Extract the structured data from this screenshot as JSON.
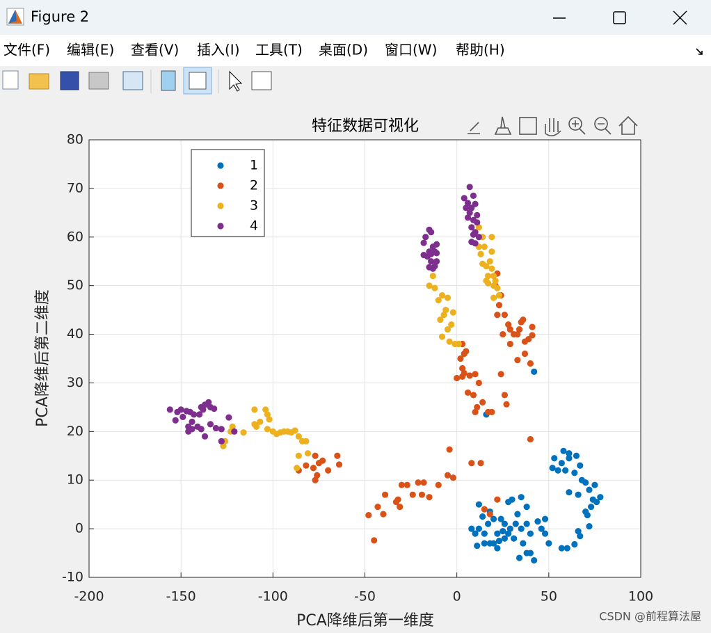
{
  "window": {
    "title": "Figure 2",
    "menu": [
      "文件(F)",
      "编辑(E)",
      "查看(V)",
      "插入(I)",
      "工具(T)",
      "桌面(D)",
      "窗口(W)",
      "帮助(H)"
    ]
  },
  "watermark": "CSDN @前程算法屋",
  "chart_data": {
    "type": "scatter",
    "title": "特征数据可视化",
    "xlabel": "PCA降维后第一维度",
    "ylabel": "PCA降维后第二维度",
    "xlim": [
      -200,
      100
    ],
    "ylim": [
      -10,
      80
    ],
    "xticks": [
      -200,
      -150,
      -100,
      -50,
      0,
      50,
      100
    ],
    "yticks": [
      -10,
      0,
      10,
      20,
      30,
      40,
      50,
      60,
      70,
      80
    ],
    "grid": true,
    "legend": "upper left",
    "series": [
      {
        "name": "1",
        "color": "#0072BD",
        "x": [
          42,
          16,
          52,
          53,
          57,
          58,
          61,
          61,
          65,
          67,
          64,
          59,
          55,
          68,
          70,
          72,
          75,
          78,
          76,
          74,
          73,
          70,
          71,
          72,
          61,
          66,
          66,
          67,
          64,
          60,
          57,
          50,
          48,
          42,
          40,
          34,
          38,
          36,
          31,
          28,
          25,
          22,
          18,
          15,
          12,
          10,
          8,
          11,
          15,
          20,
          22,
          12,
          18,
          20,
          24,
          26,
          29,
          32,
          35,
          38,
          40,
          44,
          46,
          48,
          28,
          30,
          35,
          38,
          33,
          26,
          17,
          14,
          23
        ],
        "values": [
          32.3,
          23.5,
          12.5,
          14.5,
          13.5,
          16,
          15.5,
          14.5,
          15,
          13,
          11.5,
          12,
          12,
          10,
          9.5,
          8,
          9,
          6.5,
          5.5,
          6,
          4.5,
          3.5,
          2.8,
          0.5,
          7.5,
          7,
          -0.5,
          -1.5,
          -3.2,
          -4,
          -4,
          -3,
          -1,
          -6.5,
          -5,
          -6,
          -5,
          -3,
          -2,
          -1,
          -0.5,
          -1,
          -3,
          -1,
          0,
          -1,
          0,
          -3.5,
          -3,
          -3,
          -4,
          5,
          3.5,
          2,
          2,
          1,
          0,
          1,
          0,
          1,
          -1,
          1.5,
          0,
          2,
          5.5,
          6,
          6.5,
          4.5,
          3,
          -2,
          1,
          2.5,
          -2.5
        ]
      },
      {
        "name": "2",
        "color": "#D95319",
        "x": [
          -64,
          -65,
          -70,
          -73,
          -75,
          -76,
          -77,
          -78,
          -77,
          -82,
          -86,
          -48,
          -45,
          -43,
          -40,
          -39,
          -33,
          -31,
          -32,
          -30,
          -27,
          -24,
          -21,
          -18,
          -19,
          -15,
          -10,
          -5,
          -2,
          -4,
          8,
          13,
          15,
          18,
          22,
          17,
          19,
          10,
          11,
          6,
          9,
          14,
          24,
          26,
          27,
          0,
          3,
          4,
          7,
          10,
          12,
          3,
          2,
          4,
          3,
          5,
          40,
          22,
          23,
          26,
          28,
          29,
          31,
          33,
          34,
          36,
          35,
          39,
          41,
          41,
          37,
          37,
          40,
          33,
          29,
          25,
          24,
          21,
          22
        ],
        "values": [
          13.2,
          15,
          12,
          14,
          13.5,
          11,
          10,
          12.5,
          15,
          13,
          12,
          2.8,
          -2.4,
          4.5,
          3,
          7,
          5.5,
          4.5,
          6,
          9,
          9,
          7,
          9.5,
          9.5,
          7,
          6.5,
          9,
          11,
          10.5,
          16.3,
          13.5,
          13.5,
          4,
          3,
          6,
          24,
          24,
          24,
          25,
          28,
          27.5,
          26,
          31.8,
          27.5,
          25.6,
          31,
          31.3,
          32,
          31.5,
          31.8,
          30,
          33,
          35,
          36,
          38,
          36.5,
          18.4,
          44,
          46,
          44,
          42,
          41,
          40,
          40,
          41,
          43,
          42.5,
          39,
          39.8,
          41.5,
          38.5,
          36,
          34,
          34.7,
          38,
          40,
          48,
          50,
          52.5
        ]
      },
      {
        "name": "3",
        "color": "#EDB120",
        "x": [
          -110,
          -109,
          -107,
          -104,
          -103,
          -102,
          -103,
          -100,
          -98,
          -96,
          -94,
          -92,
          -90,
          -88,
          -86,
          -84,
          -82,
          -81,
          -86,
          -87,
          -110,
          -116,
          -122,
          -126,
          -127,
          -123,
          -15,
          -12,
          -13,
          -10,
          -8,
          -5,
          -6,
          -9,
          -5,
          -3,
          -8,
          -4,
          -1,
          1,
          -7,
          -2,
          12,
          14,
          15,
          12,
          13,
          14,
          16,
          17,
          17,
          20,
          19,
          21,
          22,
          18,
          19,
          19,
          20,
          23,
          16,
          20
        ],
        "values": [
          24.5,
          21,
          22,
          24.5,
          23.5,
          22.5,
          20.5,
          20,
          19.5,
          19.8,
          20,
          20,
          19.8,
          20.2,
          19,
          18,
          18,
          15.5,
          15,
          12.5,
          21.5,
          19.8,
          21,
          18,
          17,
          20,
          50,
          49.5,
          52,
          47,
          48,
          47.5,
          45,
          43,
          41,
          42,
          39.5,
          38.5,
          38,
          38,
          44,
          44.5,
          62,
          60,
          58,
          58,
          56.5,
          54.5,
          54,
          52,
          50.5,
          50,
          53.5,
          51,
          49.5,
          55,
          57,
          60,
          52,
          48,
          51,
          47.5
        ]
      },
      {
        "name": "4",
        "color": "#7E2F8E",
        "x": [
          -156,
          -153,
          -152,
          -150,
          -149,
          -147,
          -145,
          -143,
          -144,
          -146,
          -146,
          -144,
          -141,
          -140,
          -139,
          -138,
          -137,
          -135,
          -134,
          -132,
          -137,
          -134,
          -131,
          -128,
          -124,
          -121,
          -128,
          -139,
          -17,
          -15,
          -14,
          -18,
          -13,
          -11,
          -12,
          -15,
          -16,
          -18,
          -14,
          -11,
          -15,
          -13,
          -12,
          -14,
          -11,
          4,
          6,
          7,
          9,
          8,
          7,
          6,
          9,
          8,
          9,
          10,
          11,
          8,
          10,
          11,
          5,
          12,
          10
        ],
        "values": [
          24.5,
          22.3,
          24,
          24.5,
          23,
          24.2,
          24,
          23.5,
          22,
          21,
          20,
          20.5,
          21,
          23.5,
          25,
          24.5,
          25.5,
          26,
          25,
          24.7,
          19,
          21.5,
          20.7,
          20.5,
          22.9,
          20,
          18,
          20.5,
          60,
          61.5,
          61,
          58.8,
          58,
          58.5,
          57,
          57,
          56,
          56.3,
          55,
          55,
          53.8,
          53.5,
          54,
          56.5,
          56.7,
          68,
          67,
          70.3,
          68.5,
          66,
          65,
          64,
          63.5,
          62,
          60.5,
          61,
          63,
          59,
          58.7,
          64.5,
          66,
          60,
          66.8
        ]
      }
    ]
  }
}
